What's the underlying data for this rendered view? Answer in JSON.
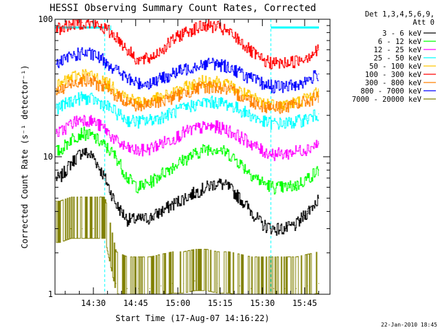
{
  "chart_data": {
    "type": "line",
    "title": "HESSI Observing Summary Count Rates, Corrected",
    "xlabel": "Start Time (17-Aug-07 14:16:22)",
    "ylabel": "Corrected Count Rate (s⁻¹ detector⁻¹)",
    "y_scale": "log",
    "ylim": [
      1,
      100
    ],
    "y_ticks": [
      "1",
      "10",
      "100"
    ],
    "xlim": [
      "14:16:22",
      "15:54:00"
    ],
    "x_ticks": [
      "14:30",
      "14:45",
      "15:00",
      "15:15",
      "15:30",
      "15:45"
    ],
    "x_tick_minutes": [
      30,
      45,
      60,
      75,
      90,
      105
    ],
    "x_range_minutes": [
      16.37,
      114.0
    ],
    "legend_header": [
      "Det 1,3,4,5,6,9,",
      "Att 0"
    ],
    "legend_position": "top-right",
    "night_markers": [
      "14:34",
      "15:33"
    ],
    "saa_marker": "N",
    "x": [
      18,
      22,
      26,
      30,
      34,
      38,
      42,
      46,
      50,
      54,
      58,
      62,
      66,
      70,
      74,
      78,
      82,
      86,
      90,
      94,
      98,
      102,
      106,
      110,
      114
    ],
    "series": [
      {
        "name": "3 - 6 keV",
        "color": "#000000",
        "values": [
          7,
          9,
          11,
          10,
          7,
          4.5,
          3.5,
          3.5,
          3.6,
          4,
          4.5,
          5,
          5.5,
          6,
          6.5,
          6,
          5,
          4,
          3.2,
          3,
          3,
          3.2,
          4,
          5,
          6.5
        ]
      },
      {
        "name": "6 - 12 keV",
        "color": "#00ff00",
        "values": [
          11,
          13.5,
          15,
          14,
          12,
          10,
          7,
          6,
          6.5,
          7.5,
          8.5,
          9.5,
          10.5,
          11.5,
          11.5,
          10.5,
          9,
          7.5,
          6.5,
          6,
          6,
          6.2,
          7,
          8,
          10
        ]
      },
      {
        "name": "12 - 25 keV",
        "color": "#ff00ff",
        "values": [
          15,
          17.5,
          19,
          18,
          16,
          13,
          11.5,
          11,
          11.5,
          12.5,
          13.5,
          15,
          16,
          16.5,
          16.5,
          15.5,
          14,
          12.5,
          11,
          10.5,
          10.5,
          11,
          11.5,
          12.5,
          14
        ]
      },
      {
        "name": "25 - 50 keV",
        "color": "#00ffff",
        "values": [
          23,
          25.5,
          27,
          26,
          24,
          21,
          18.5,
          18,
          18.5,
          19.5,
          21,
          22.5,
          24,
          25,
          25,
          24,
          22,
          20,
          18,
          17.5,
          17.5,
          18,
          19,
          20.5,
          23
        ]
      },
      {
        "name": "50 - 100 keV",
        "color": "#ffc800",
        "values": [
          33,
          38,
          40,
          38.5,
          35,
          31,
          27,
          25,
          25.5,
          27,
          29,
          31.5,
          34,
          36,
          35.5,
          33,
          30,
          27,
          25,
          24,
          24,
          25,
          27,
          30,
          34
        ]
      },
      {
        "name": "100 - 300 keV",
        "color": "#ff0000",
        "values": [
          86,
          92,
          95,
          92,
          86,
          75,
          60,
          50,
          52,
          60,
          70,
          80,
          86,
          90,
          88,
          80,
          70,
          58,
          50,
          48,
          48,
          50,
          54,
          60,
          72
        ]
      },
      {
        "name": "300 - 800 keV",
        "color": "#ff8000",
        "values": [
          30,
          34,
          36.5,
          35,
          32,
          28,
          25,
          23.5,
          24,
          25.5,
          27,
          29,
          31,
          32.5,
          32,
          30.5,
          28,
          25.5,
          23.5,
          23,
          23,
          24,
          25.5,
          27.5,
          30
        ]
      },
      {
        "name": "800 - 7000 keV",
        "color": "#0000ff",
        "values": [
          48,
          54,
          57,
          55,
          50,
          43,
          37,
          34,
          34.5,
          37,
          40,
          43,
          46,
          48,
          47.5,
          45,
          41,
          37,
          34,
          32.5,
          32.5,
          33.5,
          36,
          40,
          46
        ]
      },
      {
        "name": "7000 - 20000 keV",
        "color": "#808000",
        "values": [
          2.8,
          3,
          3,
          3,
          3,
          1.2,
          1.1,
          1.1,
          1.1,
          1.15,
          1.2,
          1.2,
          1.25,
          1.25,
          1.2,
          1.2,
          1.15,
          1.1,
          1.1,
          1.1,
          1.1,
          1.1,
          1.15,
          1.2,
          2.2
        ]
      }
    ]
  },
  "timestamp": "22-Jan-2010 18:45"
}
